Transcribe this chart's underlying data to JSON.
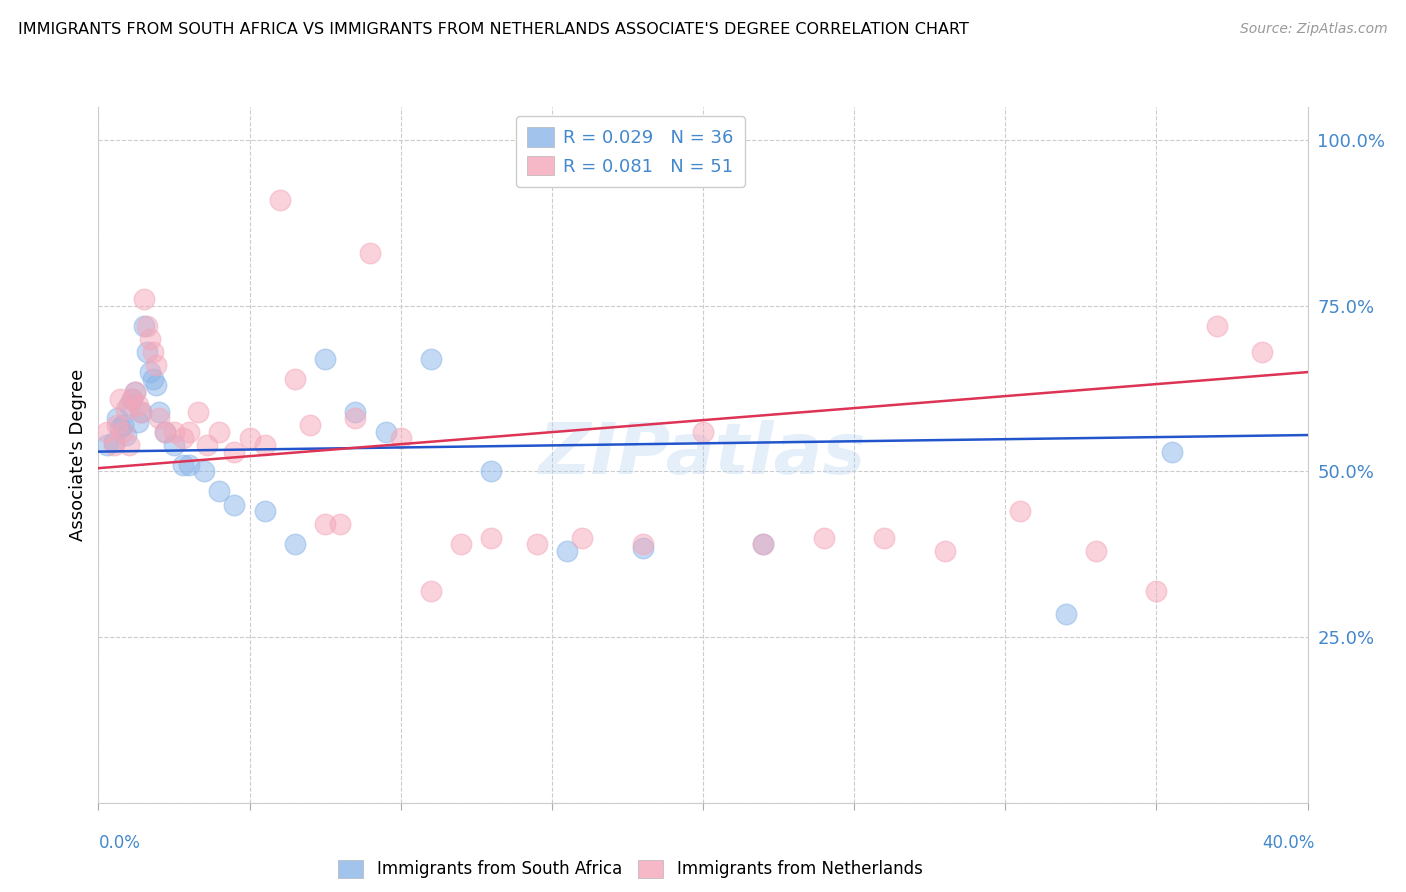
{
  "title": "IMMIGRANTS FROM SOUTH AFRICA VS IMMIGRANTS FROM NETHERLANDS ASSOCIATE'S DEGREE CORRELATION CHART",
  "source": "Source: ZipAtlas.com",
  "ylabel": "Associate's Degree",
  "xlim": [
    0.0,
    0.4
  ],
  "ylim": [
    0.0,
    1.05
  ],
  "color_blue": "#8ab4e8",
  "color_pink": "#f4a7b9",
  "trendline_blue_color": "#2255cc",
  "trendline_pink_color": "#dd3355",
  "axis_color": "#4488CC",
  "watermark": "ZIPatlas",
  "south_africa_x": [
    0.003,
    0.005,
    0.006,
    0.007,
    0.008,
    0.009,
    0.01,
    0.011,
    0.012,
    0.013,
    0.014,
    0.015,
    0.016,
    0.017,
    0.018,
    0.019,
    0.02,
    0.022,
    0.025,
    0.028,
    0.03,
    0.035,
    0.04,
    0.045,
    0.055,
    0.065,
    0.075,
    0.085,
    0.095,
    0.11,
    0.13,
    0.155,
    0.18,
    0.22,
    0.32,
    0.355
  ],
  "south_africa_y": [
    0.54,
    0.545,
    0.58,
    0.565,
    0.57,
    0.555,
    0.6,
    0.61,
    0.62,
    0.575,
    0.59,
    0.72,
    0.68,
    0.65,
    0.64,
    0.63,
    0.59,
    0.56,
    0.54,
    0.51,
    0.51,
    0.5,
    0.47,
    0.45,
    0.44,
    0.39,
    0.67,
    0.59,
    0.56,
    0.67,
    0.5,
    0.38,
    0.385,
    0.39,
    0.285,
    0.53
  ],
  "netherlands_x": [
    0.003,
    0.005,
    0.006,
    0.007,
    0.008,
    0.009,
    0.01,
    0.011,
    0.012,
    0.013,
    0.014,
    0.015,
    0.016,
    0.017,
    0.018,
    0.019,
    0.02,
    0.022,
    0.025,
    0.028,
    0.03,
    0.033,
    0.036,
    0.04,
    0.045,
    0.05,
    0.055,
    0.06,
    0.065,
    0.07,
    0.075,
    0.08,
    0.085,
    0.09,
    0.1,
    0.11,
    0.12,
    0.13,
    0.145,
    0.16,
    0.18,
    0.2,
    0.22,
    0.24,
    0.26,
    0.28,
    0.305,
    0.33,
    0.35,
    0.37,
    0.385
  ],
  "netherlands_y": [
    0.56,
    0.54,
    0.57,
    0.61,
    0.56,
    0.595,
    0.54,
    0.61,
    0.62,
    0.6,
    0.59,
    0.76,
    0.72,
    0.7,
    0.68,
    0.66,
    0.58,
    0.56,
    0.56,
    0.55,
    0.56,
    0.59,
    0.54,
    0.56,
    0.53,
    0.55,
    0.54,
    0.91,
    0.64,
    0.57,
    0.42,
    0.42,
    0.58,
    0.83,
    0.55,
    0.32,
    0.39,
    0.4,
    0.39,
    0.4,
    0.39,
    0.56,
    0.39,
    0.4,
    0.4,
    0.38,
    0.44,
    0.38,
    0.32,
    0.72,
    0.68
  ]
}
